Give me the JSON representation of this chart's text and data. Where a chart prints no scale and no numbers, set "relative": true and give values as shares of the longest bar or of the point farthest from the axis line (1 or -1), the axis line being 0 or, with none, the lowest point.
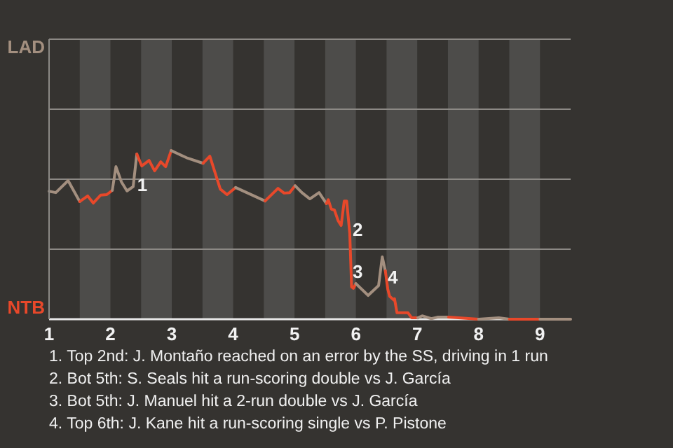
{
  "chart_data": {
    "type": "line",
    "xlim": [
      1,
      9.5
    ],
    "relative": true,
    "xticks": [
      1,
      2,
      3,
      4,
      5,
      6,
      7,
      8,
      9
    ],
    "marker": "none",
    "ref_lines": [
      {
        "axis": "y",
        "value": 0.415,
        "color": "#8c8985"
      },
      {
        "axis": "y",
        "value": 0.831,
        "color": "#8c8985"
      },
      {
        "axis": "y",
        "value": 1.246,
        "color": "#8c8985"
      },
      {
        "axis": "y",
        "value": 1.661,
        "color": "#8c8985"
      }
    ],
    "bands": [
      {
        "axis": "x",
        "from": 1.5,
        "to": 2,
        "color": "#4d4c4a"
      },
      {
        "axis": "x",
        "from": 2.5,
        "to": 3,
        "color": "#4d4c4a"
      },
      {
        "axis": "x",
        "from": 3.5,
        "to": 4,
        "color": "#4d4c4a"
      },
      {
        "axis": "x",
        "from": 4.5,
        "to": 5,
        "color": "#4d4c4a"
      },
      {
        "axis": "x",
        "from": 5.5,
        "to": 6,
        "color": "#4d4c4a"
      },
      {
        "axis": "x",
        "from": 6.5,
        "to": 7,
        "color": "#4d4c4a"
      },
      {
        "axis": "x",
        "from": 7.5,
        "to": 8,
        "color": "#4d4c4a"
      },
      {
        "axis": "x",
        "from": 8.5,
        "to": 9,
        "color": "#4d4c4a"
      }
    ],
    "series": [
      {
        "color": "#a38f7f",
        "x": [
          1,
          1.11,
          1.31,
          1.5
        ],
        "values": [
          0.759,
          0.751,
          0.822,
          0.698
        ]
      },
      {
        "color": "#e8482a",
        "x": [
          1.5,
          1.63,
          1.72,
          1.84,
          1.94,
          2.03
        ],
        "values": [
          0.698,
          0.731,
          0.689,
          0.736,
          0.739,
          0.764
        ]
      },
      {
        "color": "#a38f7f",
        "x": [
          2.03,
          2.09,
          2.18,
          2.27,
          2.37,
          2.43
        ],
        "values": [
          0.764,
          0.905,
          0.814,
          0.761,
          0.786,
          0.98
        ]
      },
      {
        "color": "#e8482a",
        "x": [
          2.43,
          2.51,
          2.63,
          2.72,
          2.82,
          2.9,
          2.99
        ],
        "values": [
          0.98,
          0.909,
          0.942,
          0.88,
          0.934,
          0.905,
          1
        ]
      },
      {
        "color": "#a38f7f",
        "x": [
          2.99,
          3.24,
          3.51
        ],
        "values": [
          1,
          0.958,
          0.925
        ]
      },
      {
        "color": "#e8482a",
        "x": [
          3.51,
          3.62,
          3.79,
          3.9,
          4.04
        ],
        "values": [
          0.925,
          0.967,
          0.772,
          0.739,
          0.781
        ]
      },
      {
        "color": "#a38f7f",
        "x": [
          4.04,
          4.52
        ],
        "values": [
          0.781,
          0.701
        ]
      },
      {
        "color": "#e8482a",
        "x": [
          4.52,
          4.73,
          4.83,
          4.92,
          5.01
        ],
        "values": [
          0.701,
          0.776,
          0.748,
          0.751,
          0.792
        ]
      },
      {
        "color": "#a38f7f",
        "x": [
          5.01,
          5.12,
          5.25,
          5.4,
          5.52
        ],
        "values": [
          0.792,
          0.751,
          0.714,
          0.751,
          0.686
        ]
      },
      {
        "color": "#e8482a",
        "x": [
          5.52,
          5.55,
          5.6,
          5.65,
          5.71,
          5.76,
          5.81,
          5.85,
          5.9,
          5.93,
          5.96,
          6
        ],
        "values": [
          0.686,
          0.709,
          0.653,
          0.648,
          0.585,
          0.556,
          0.701,
          0.701,
          0.51,
          0.191,
          0.183,
          0.211
        ]
      },
      {
        "color": "#a38f7f",
        "x": [
          6,
          6.2,
          6.37,
          6.43,
          6.48
        ],
        "values": [
          0.211,
          0.141,
          0.199,
          0.37,
          0.287
        ]
      },
      {
        "color": "#e8482a",
        "x": [
          6.48,
          6.52,
          6.55,
          6.62,
          6.63,
          6.67,
          6.85,
          6.91,
          7.01
        ],
        "values": [
          0.287,
          0.178,
          0.136,
          0.113,
          0.121,
          0.038,
          0.038,
          0.008,
          0.008
        ]
      },
      {
        "color": "#a38f7f",
        "x": [
          7.01,
          7.08,
          7.23,
          7.33,
          7.51
        ],
        "values": [
          0.008,
          0.02,
          0.003,
          0.012,
          0.012
        ]
      },
      {
        "color": "#e8482a",
        "x": [
          7.51,
          8
        ],
        "values": [
          0.012,
          0
        ]
      },
      {
        "color": "#a38f7f",
        "x": [
          8,
          8.33,
          8.5
        ],
        "values": [
          0,
          0.008,
          0
        ]
      },
      {
        "color": "#e8482a",
        "x": [
          8.5,
          9
        ],
        "values": [
          0,
          0
        ]
      },
      {
        "color": "#a38f7f",
        "x": [
          9,
          9.5
        ],
        "values": [
          0,
          0
        ]
      }
    ],
    "annotations": [
      "LAD",
      "NTB",
      {
        "text": "1",
        "x": 2.52,
        "y": 0.797
      },
      {
        "text": "2",
        "x": 6.03,
        "y": 0.532
      },
      {
        "text": "3",
        "x": 6.03,
        "y": 0.282
      },
      {
        "text": "4",
        "x": 6.6,
        "y": 0.249
      },
      "1. Top 2nd: J. Montaño reached on an error by the SS, driving in 1 run",
      "2. Bot 5th: S. Seals hit a run-scoring double vs J. García",
      "3. Bot 5th: J. Manuel hit a 2-run double vs J. García",
      "4. Top 6th: J. Kane hit a run-scoring single vs P. Pistone"
    ]
  }
}
